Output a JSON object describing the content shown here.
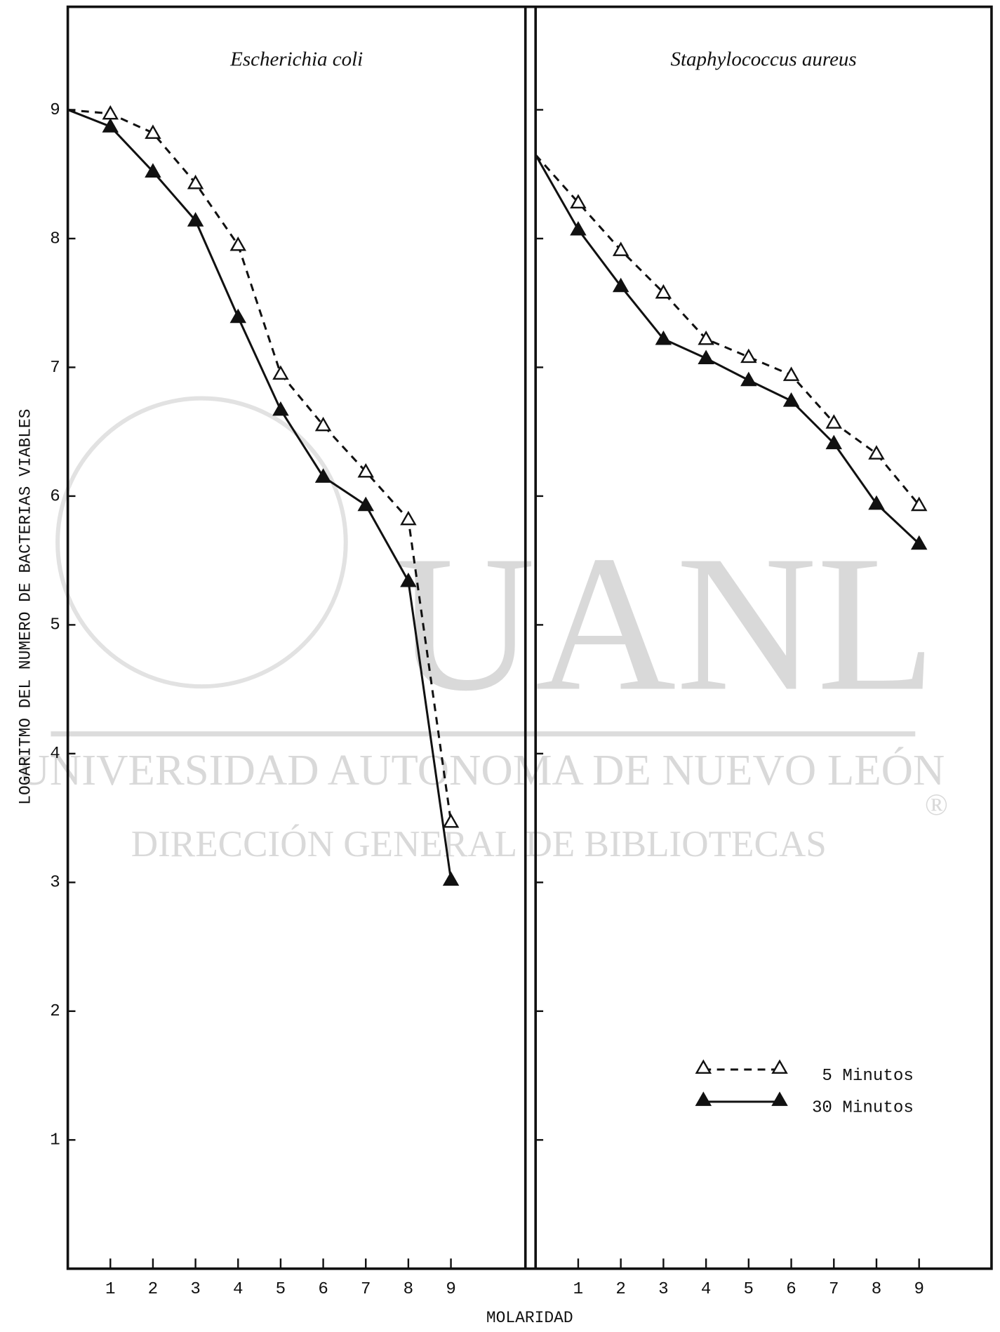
{
  "axis_labels": {
    "x": "MOLARIDAD",
    "y": "LOGARITMO DEL NUMERO DE BACTERIAS VIABLES"
  },
  "watermark": {
    "logo": "UANL",
    "line1": "UNIVERSIDAD AUTONOMA DE NUEVO LEÓN",
    "line2": "DIRECCIÓN GENERAL DE BIBLIOTECAS",
    "mark": "®"
  },
  "chart_data": [
    {
      "type": "line",
      "title": "Escherichia coli",
      "x": [
        0,
        1,
        2,
        3,
        4,
        5,
        6,
        7,
        8,
        9
      ],
      "xlim": [
        0,
        10.75
      ],
      "xticks": [
        1,
        2,
        3,
        4,
        5,
        6,
        7,
        8,
        9
      ],
      "ylim": [
        0,
        9.8
      ],
      "yticks": [
        1,
        2,
        3,
        4,
        5,
        6,
        7,
        8,
        9
      ],
      "show_ytick_labels": true,
      "series": [
        {
          "name": "5 Minutos",
          "color": "#111111",
          "line": "dashed",
          "marker": "open-triangle",
          "values": [
            9.0,
            8.97,
            8.82,
            8.43,
            7.95,
            6.95,
            6.55,
            6.19,
            5.82,
            3.47
          ]
        },
        {
          "name": "30 Minutos",
          "color": "#111111",
          "line": "solid",
          "marker": "filled-triangle",
          "values": [
            9.0,
            8.87,
            8.52,
            8.14,
            7.39,
            6.67,
            6.15,
            5.93,
            5.34,
            3.02
          ]
        }
      ]
    },
    {
      "type": "line",
      "title": "Staphylococcus aureus",
      "x": [
        0,
        1,
        2,
        3,
        4,
        5,
        6,
        7,
        8,
        9
      ],
      "xlim": [
        0,
        10.7
      ],
      "xticks": [
        1,
        2,
        3,
        4,
        5,
        6,
        7,
        8,
        9
      ],
      "ylim": [
        0,
        9.8
      ],
      "yticks": [
        1,
        2,
        3,
        4,
        5,
        6,
        7,
        8,
        9
      ],
      "show_ytick_labels": false,
      "legend": "lower right",
      "series": [
        {
          "name": "5 Minutos",
          "color": "#111111",
          "line": "dashed",
          "marker": "open-triangle",
          "values": [
            8.65,
            8.28,
            7.91,
            7.58,
            7.22,
            7.08,
            6.94,
            6.57,
            6.33,
            5.93
          ]
        },
        {
          "name": "30 Minutos",
          "color": "#111111",
          "line": "solid",
          "marker": "filled-triangle",
          "values": [
            8.65,
            8.07,
            7.63,
            7.22,
            7.07,
            6.9,
            6.74,
            6.41,
            5.94,
            5.63
          ]
        }
      ]
    }
  ]
}
